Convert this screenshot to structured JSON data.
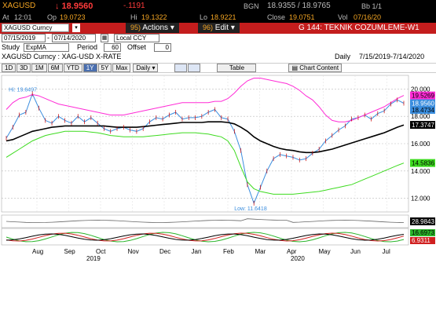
{
  "quote": {
    "ticker": "XAGUSD",
    "last": "↓ 18.9560",
    "change": "-.1191",
    "source": "BGN",
    "bid_ask": "18.9355 / 18.9765",
    "bid_ask_size": "Bb 1/1",
    "at_label": "At",
    "at_time": "12:01",
    "op_label": "Op",
    "op_value": "19.0723",
    "hi_label": "Hi",
    "hi_value": "19.1322",
    "lo_label": "Lo",
    "lo_value": "18.9221",
    "close_label": "Close",
    "close_value": "19.0751",
    "date_label": "Vol",
    "date_value": "07/16/20"
  },
  "toolbar": {
    "security": "XAGUSD Curncy",
    "tab1_num": "95)",
    "tab1_label": "Actions",
    "tab2_num": "96)",
    "tab2_label": "Edit",
    "title": "G 144: TEKNIK COZUMLEME-W1",
    "from_date": "07/15/2019",
    "to_date": "07/14/2020",
    "currency": "Local CCY"
  },
  "study": {
    "label": "Study",
    "value": "ExpMA",
    "period_label": "Period",
    "period_value": "60",
    "offset_label": "Offset",
    "offset_value": "0"
  },
  "chart_header": {
    "name": "XAGUSD Curncy : XAG-USD X-RATE",
    "frequency": "Daily",
    "range": "7/15/2019-7/14/2020"
  },
  "range_buttons": [
    "1D",
    "3D",
    "1M",
    "6M",
    "YTD",
    "1Y",
    "5Y",
    "Max"
  ],
  "selected_range": "1Y",
  "freq_select": "Daily",
  "table_button": "Table",
  "content_button": "Chart Content",
  "colors": {
    "price": "#3a8dde",
    "ma": "#000000",
    "upper_band": "#ff2bd6",
    "lower_band": "#3ddb1f",
    "accent": "#f5a623"
  },
  "chart_data": {
    "type": "line",
    "x_ticks": [
      "Aug",
      "Sep",
      "Oct",
      "Nov",
      "Dec",
      "Jan",
      "Feb",
      "Mar",
      "Apr",
      "May",
      "Jun",
      "Jul"
    ],
    "year_labels": [
      "2019",
      "2020"
    ],
    "y_ticks": [
      "20.000",
      "18.000",
      "16.000",
      "14.000",
      "12.000"
    ],
    "ylim": [
      11,
      21
    ],
    "annotations": {
      "hi": "Hi: 19.6497",
      "low": "Low: 11.6418"
    },
    "right_labels": [
      "19.5269",
      "18.9560",
      "18.4734",
      "17.3747",
      "14.5836"
    ],
    "lower_labels": [
      "28.9843",
      "16.6973",
      "6.9311"
    ],
    "series": [
      {
        "values": [
          16.4,
          17.2,
          18.1,
          18.3,
          19.65,
          18.6,
          17.7,
          17.5,
          18.0,
          17.7,
          17.5,
          18.0,
          17.6,
          17.9,
          17.5,
          17.1,
          16.9,
          17.1,
          17.2,
          17.0,
          16.9,
          17.1,
          17.6,
          17.9,
          17.8,
          18.1,
          18.3,
          17.8,
          17.9,
          17.9,
          18.0,
          18.3,
          18.5,
          17.9,
          17.8,
          16.9,
          15.5,
          13.0,
          11.64,
          12.8,
          14.0,
          14.9,
          15.2,
          15.1,
          15.0,
          14.8,
          14.9,
          15.3,
          15.6,
          16.2,
          16.6,
          17.0,
          17.3,
          17.8,
          17.9,
          18.1,
          17.8,
          18.2,
          18.4,
          18.9,
          19.2,
          18.96
        ]
      },
      {
        "values": [
          16.2,
          16.3,
          16.5,
          16.7,
          16.9,
          17.0,
          17.1,
          17.2,
          17.25,
          17.3,
          17.3,
          17.3,
          17.3,
          17.3,
          17.3,
          17.3,
          17.25,
          17.2,
          17.2,
          17.2,
          17.2,
          17.25,
          17.3,
          17.35,
          17.4,
          17.45,
          17.5,
          17.55,
          17.55,
          17.55,
          17.55,
          17.6,
          17.6,
          17.6,
          17.55,
          17.45,
          17.2,
          16.9,
          16.5,
          16.2,
          16.0,
          15.8,
          15.65,
          15.55,
          15.5,
          15.4,
          15.35,
          15.35,
          15.4,
          15.5,
          15.6,
          15.75,
          15.9,
          16.05,
          16.2,
          16.35,
          16.5,
          16.65,
          16.8,
          17.0,
          17.2,
          17.37
        ]
      },
      {
        "values": [
          18.5,
          19.0,
          19.3,
          19.4,
          19.6,
          19.5,
          19.3,
          19.1,
          18.9,
          18.8,
          18.7,
          18.6,
          18.5,
          18.4,
          18.3,
          18.2,
          18.1,
          18.1,
          18.1,
          18.2,
          18.3,
          18.4,
          18.5,
          18.6,
          18.7,
          18.8,
          18.9,
          19.0,
          19.0,
          19.0,
          19.0,
          19.0,
          19.1,
          19.1,
          19.3,
          19.7,
          20.2,
          20.6,
          20.8,
          20.8,
          20.7,
          20.6,
          20.5,
          20.4,
          20.2,
          19.9,
          19.5,
          19.2,
          18.7,
          18.1,
          17.7,
          17.6,
          17.6,
          17.7,
          17.9,
          18.1,
          18.3,
          18.5,
          18.7,
          19.0,
          19.3,
          19.53
        ]
      },
      {
        "values": [
          15.0,
          15.3,
          15.6,
          15.9,
          16.2,
          16.4,
          16.6,
          16.7,
          16.8,
          16.9,
          16.9,
          16.9,
          16.9,
          16.85,
          16.8,
          16.7,
          16.6,
          16.55,
          16.5,
          16.5,
          16.5,
          16.5,
          16.55,
          16.6,
          16.65,
          16.7,
          16.75,
          16.8,
          16.8,
          16.8,
          16.75,
          16.7,
          16.6,
          16.5,
          16.2,
          15.5,
          14.3,
          13.2,
          12.7,
          12.5,
          12.4,
          12.3,
          12.3,
          12.3,
          12.3,
          12.35,
          12.4,
          12.45,
          12.5,
          12.6,
          12.7,
          12.8,
          12.9,
          13.0,
          13.2,
          13.4,
          13.6,
          13.8,
          14.0,
          14.2,
          14.4,
          14.58
        ]
      }
    ]
  }
}
